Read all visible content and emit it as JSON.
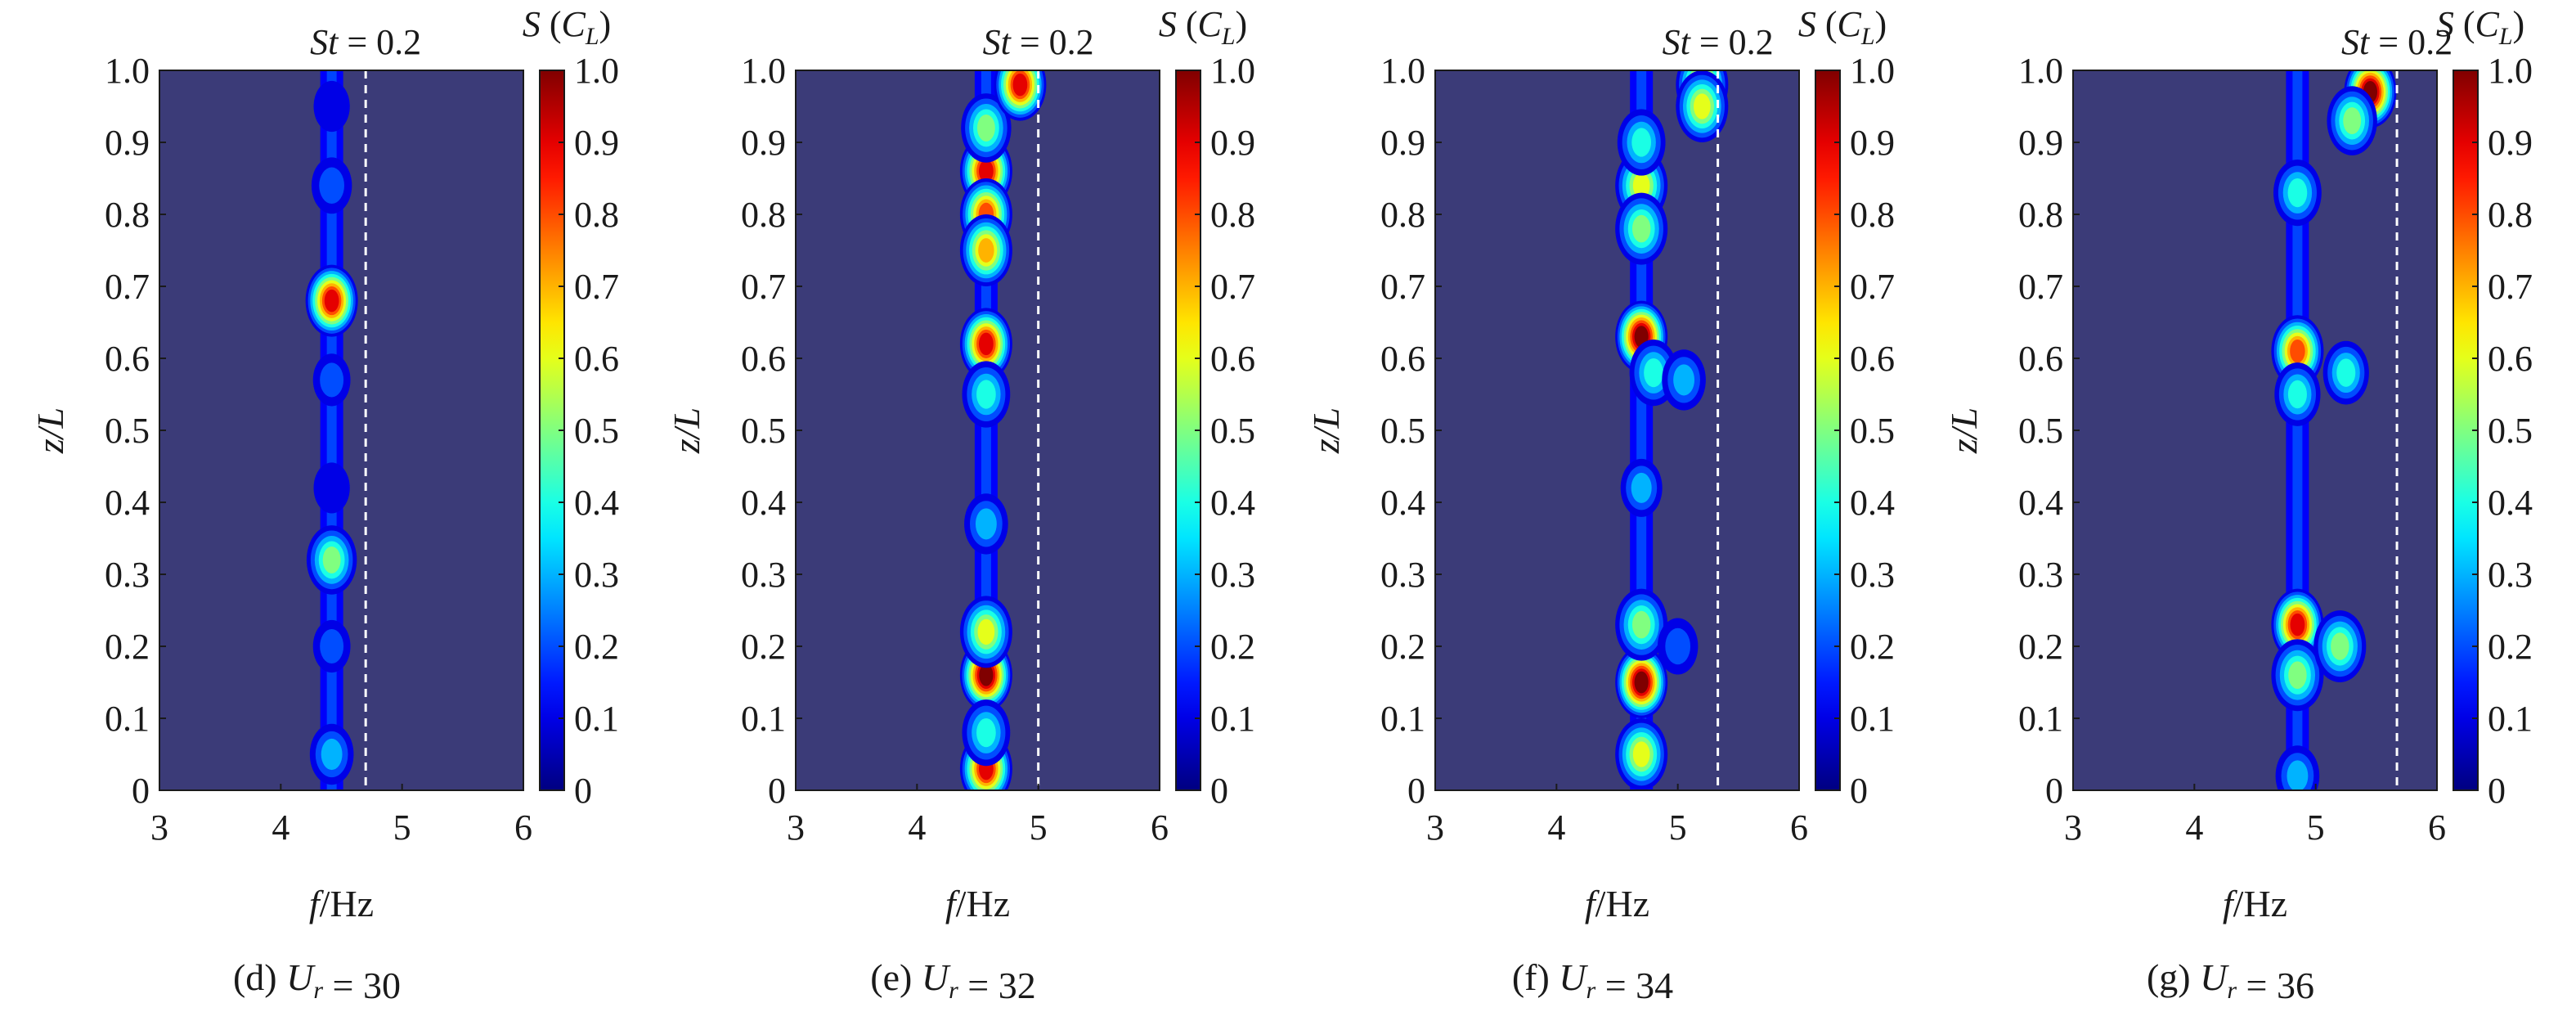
{
  "chart_data": {
    "type": "heatmap",
    "colormap": "jet",
    "colorbar": {
      "label": "S (C_L)",
      "range": [
        0,
        1
      ],
      "ticks": [
        "0",
        "0.1",
        "0.2",
        "0.3",
        "0.4",
        "0.5",
        "0.6",
        "0.7",
        "0.8",
        "0.9",
        "1.0"
      ]
    },
    "shared": {
      "xlabel": "f/Hz",
      "ylabel": "z/L",
      "xlim": [
        3,
        6
      ],
      "ylim": [
        0,
        1
      ],
      "xticks": [
        "3",
        "4",
        "5",
        "6"
      ],
      "yticks": [
        "0",
        "0.1",
        "0.2",
        "0.3",
        "0.4",
        "0.5",
        "0.6",
        "0.7",
        "0.8",
        "0.9",
        "1.0"
      ]
    },
    "panels": [
      {
        "caption": "(d) U_r = 30",
        "st_label": "St = 0.2",
        "st_line_f": 4.7,
        "dominant_f": 4.42,
        "peaks": [
          {
            "f": 4.42,
            "z": 0.68,
            "s": 0.9
          },
          {
            "f": 4.42,
            "z": 0.32,
            "s": 0.45
          },
          {
            "f": 4.42,
            "z": 0.05,
            "s": 0.3
          },
          {
            "f": 4.42,
            "z": 0.84,
            "s": 0.22
          },
          {
            "f": 4.42,
            "z": 0.57,
            "s": 0.15
          },
          {
            "f": 4.42,
            "z": 0.42,
            "s": 0.12
          },
          {
            "f": 4.42,
            "z": 0.2,
            "s": 0.15
          },
          {
            "f": 4.42,
            "z": 0.95,
            "s": 0.12
          }
        ]
      },
      {
        "caption": "(e) U_r = 32",
        "st_label": "St = 0.2",
        "st_line_f": 5.0,
        "dominant_f": 4.57,
        "peaks": [
          {
            "f": 4.57,
            "z": 0.86,
            "s": 0.88
          },
          {
            "f": 4.57,
            "z": 0.8,
            "s": 0.82
          },
          {
            "f": 4.57,
            "z": 0.75,
            "s": 0.7
          },
          {
            "f": 4.57,
            "z": 0.92,
            "s": 0.45
          },
          {
            "f": 4.85,
            "z": 0.98,
            "s": 0.85
          },
          {
            "f": 4.57,
            "z": 0.62,
            "s": 0.9
          },
          {
            "f": 4.57,
            "z": 0.55,
            "s": 0.4
          },
          {
            "f": 4.57,
            "z": 0.37,
            "s": 0.3
          },
          {
            "f": 4.57,
            "z": 0.16,
            "s": 0.95
          },
          {
            "f": 4.57,
            "z": 0.22,
            "s": 0.55
          },
          {
            "f": 4.57,
            "z": 0.03,
            "s": 0.85
          },
          {
            "f": 4.57,
            "z": 0.08,
            "s": 0.4
          }
        ]
      },
      {
        "caption": "(f) U_r = 34",
        "st_label": "St = 0.2",
        "st_line_f": 5.33,
        "dominant_f": 4.7,
        "peaks": [
          {
            "f": 4.7,
            "z": 0.84,
            "s": 0.6
          },
          {
            "f": 4.7,
            "z": 0.9,
            "s": 0.4
          },
          {
            "f": 4.7,
            "z": 0.78,
            "s": 0.5
          },
          {
            "f": 5.2,
            "z": 0.98,
            "s": 0.7
          },
          {
            "f": 5.2,
            "z": 0.95,
            "s": 0.55
          },
          {
            "f": 4.7,
            "z": 0.63,
            "s": 0.95
          },
          {
            "f": 4.8,
            "z": 0.58,
            "s": 0.4
          },
          {
            "f": 5.05,
            "z": 0.57,
            "s": 0.3
          },
          {
            "f": 4.7,
            "z": 0.42,
            "s": 0.25
          },
          {
            "f": 4.7,
            "z": 0.15,
            "s": 1.0
          },
          {
            "f": 4.7,
            "z": 0.23,
            "s": 0.5
          },
          {
            "f": 4.7,
            "z": 0.05,
            "s": 0.55
          },
          {
            "f": 5.0,
            "z": 0.2,
            "s": 0.22
          }
        ]
      },
      {
        "caption": "(g) U_r = 36",
        "st_label": "St = 0.2",
        "st_line_f": 5.67,
        "dominant_f": 4.85,
        "peaks": [
          {
            "f": 5.45,
            "z": 0.97,
            "s": 0.95
          },
          {
            "f": 5.3,
            "z": 0.93,
            "s": 0.45
          },
          {
            "f": 4.85,
            "z": 0.83,
            "s": 0.4
          },
          {
            "f": 4.85,
            "z": 0.61,
            "s": 0.8
          },
          {
            "f": 4.85,
            "z": 0.55,
            "s": 0.35
          },
          {
            "f": 5.25,
            "z": 0.58,
            "s": 0.35
          },
          {
            "f": 4.85,
            "z": 0.23,
            "s": 0.9
          },
          {
            "f": 4.85,
            "z": 0.16,
            "s": 0.5
          },
          {
            "f": 5.2,
            "z": 0.2,
            "s": 0.5
          },
          {
            "f": 4.85,
            "z": 0.02,
            "s": 0.3
          }
        ]
      }
    ]
  }
}
